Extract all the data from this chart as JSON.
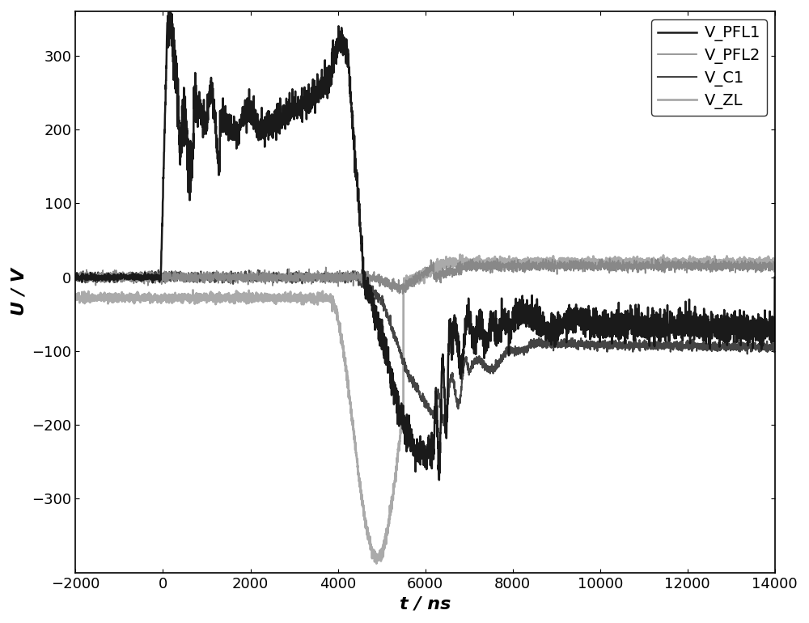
{
  "xlabel": "t / ns",
  "ylabel": "U / V",
  "xlim": [
    -2000,
    14000
  ],
  "ylim": [
    -400,
    360
  ],
  "yticks": [
    -300,
    -200,
    -100,
    0,
    100,
    200,
    300
  ],
  "xticks": [
    -2000,
    0,
    2000,
    4000,
    6000,
    8000,
    10000,
    12000,
    14000
  ],
  "legend_labels": [
    "V_PFL1",
    "V_PFL2",
    "V_C1",
    "V_ZL"
  ],
  "colors": {
    "V_PFL1": "#1a1a1a",
    "V_PFL2": "#888888",
    "V_C1": "#444444",
    "V_ZL": "#aaaaaa"
  },
  "linewidths": {
    "V_PFL1": 1.8,
    "V_PFL2": 1.2,
    "V_C1": 1.5,
    "V_ZL": 2.0
  }
}
